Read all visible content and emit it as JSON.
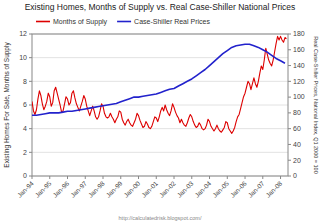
{
  "chart_data": {
    "type": "line",
    "title": "Existing Homes, Months of Supply vs. Real Case-Shiller National Prices",
    "y_label": "Existing Homes For Sale, Months of Supply",
    "y2_label": "Real Case-Shiller Prices, National Index, Q1 2000 = 100",
    "annotations": [
      "http://calculatedrisk.blogspot.com/"
    ],
    "xlim": [
      1994.0,
      2008.42
    ],
    "xticks": [
      {
        "value": 1994.0,
        "label": "Jan-94"
      },
      {
        "value": 1995.0,
        "label": "Jan-95"
      },
      {
        "value": 1996.0,
        "label": "Jan-96"
      },
      {
        "value": 1997.0,
        "label": "Jan-97"
      },
      {
        "value": 1998.0,
        "label": "Jan-98"
      },
      {
        "value": 1999.0,
        "label": "Jan-99"
      },
      {
        "value": 2000.0,
        "label": "Jan-00"
      },
      {
        "value": 2001.0,
        "label": "Jan-01"
      },
      {
        "value": 2002.0,
        "label": "Jan-02"
      },
      {
        "value": 2003.0,
        "label": "Jan-03"
      },
      {
        "value": 2004.0,
        "label": "Jan-04"
      },
      {
        "value": 2005.0,
        "label": "Jan-05"
      },
      {
        "value": 2006.0,
        "label": "Jan-06"
      },
      {
        "value": 2007.0,
        "label": "Jan-07"
      },
      {
        "value": 2008.0,
        "label": "Jan-08"
      }
    ],
    "ylim": [
      0,
      12
    ],
    "yticks": [
      0,
      2,
      4,
      6,
      8,
      10,
      12
    ],
    "y2lim": [
      0,
      180
    ],
    "y2ticks": [
      0,
      20,
      40,
      60,
      80,
      100,
      120,
      140,
      160,
      180
    ],
    "grid": true,
    "legend": "top-left",
    "series": [
      {
        "name": "Months of Supply",
        "color": "#dd0000",
        "x": [
          1994.0,
          1994.083,
          1994.167,
          1994.25,
          1994.333,
          1994.417,
          1994.5,
          1994.583,
          1994.667,
          1994.75,
          1994.833,
          1994.917,
          1995.0,
          1995.083,
          1995.167,
          1995.25,
          1995.333,
          1995.417,
          1995.5,
          1995.583,
          1995.667,
          1995.75,
          1995.833,
          1995.917,
          1996.0,
          1996.083,
          1996.167,
          1996.25,
          1996.333,
          1996.417,
          1996.5,
          1996.583,
          1996.667,
          1996.75,
          1996.833,
          1996.917,
          1997.0,
          1997.083,
          1997.167,
          1997.25,
          1997.333,
          1997.417,
          1997.5,
          1997.583,
          1997.667,
          1997.75,
          1997.833,
          1997.917,
          1998.0,
          1998.083,
          1998.167,
          1998.25,
          1998.333,
          1998.417,
          1998.5,
          1998.583,
          1998.667,
          1998.75,
          1998.833,
          1998.917,
          1999.0,
          1999.083,
          1999.167,
          1999.25,
          1999.333,
          1999.417,
          1999.5,
          1999.583,
          1999.667,
          1999.75,
          1999.833,
          1999.917,
          2000.0,
          2000.083,
          2000.167,
          2000.25,
          2000.333,
          2000.417,
          2000.5,
          2000.583,
          2000.667,
          2000.75,
          2000.833,
          2000.917,
          2001.0,
          2001.083,
          2001.167,
          2001.25,
          2001.333,
          2001.417,
          2001.5,
          2001.583,
          2001.667,
          2001.75,
          2001.833,
          2001.917,
          2002.0,
          2002.083,
          2002.167,
          2002.25,
          2002.333,
          2002.417,
          2002.5,
          2002.583,
          2002.667,
          2002.75,
          2002.833,
          2002.917,
          2003.0,
          2003.083,
          2003.167,
          2003.25,
          2003.333,
          2003.417,
          2003.5,
          2003.583,
          2003.667,
          2003.75,
          2003.833,
          2003.917,
          2004.0,
          2004.083,
          2004.167,
          2004.25,
          2004.333,
          2004.417,
          2004.5,
          2004.583,
          2004.667,
          2004.75,
          2004.833,
          2004.917,
          2005.0,
          2005.083,
          2005.167,
          2005.25,
          2005.333,
          2005.417,
          2005.5,
          2005.583,
          2005.667,
          2005.75,
          2005.833,
          2005.917,
          2006.0,
          2006.083,
          2006.167,
          2006.25,
          2006.333,
          2006.417,
          2006.5,
          2006.583,
          2006.667,
          2006.75,
          2006.833,
          2006.917,
          2007.0,
          2007.083,
          2007.167,
          2007.25,
          2007.333,
          2007.417,
          2007.5,
          2007.583,
          2007.667,
          2007.75,
          2007.833,
          2007.917,
          2008.0,
          2008.083,
          2008.167,
          2008.25,
          2008.333
        ],
        "values": [
          6.3,
          5.5,
          5.2,
          5.6,
          6.5,
          7.2,
          6.8,
          6.1,
          5.6,
          5.9,
          6.3,
          7.0,
          6.7,
          5.9,
          6.2,
          7.2,
          7.5,
          7.0,
          6.5,
          6.0,
          5.4,
          5.5,
          6.1,
          6.7,
          6.5,
          6.0,
          6.2,
          7.0,
          7.2,
          6.6,
          6.1,
          5.8,
          5.5,
          5.9,
          6.3,
          6.8,
          6.5,
          5.9,
          5.5,
          5.1,
          5.5,
          5.9,
          5.5,
          5.0,
          4.8,
          5.0,
          5.5,
          6.1,
          5.9,
          5.3,
          5.0,
          4.9,
          5.0,
          5.3,
          5.0,
          4.8,
          4.5,
          4.8,
          5.0,
          5.5,
          5.4,
          4.8,
          4.5,
          4.3,
          4.6,
          4.8,
          4.5,
          4.3,
          4.2,
          4.5,
          4.8,
          5.3,
          5.1,
          4.7,
          4.4,
          4.1,
          4.2,
          4.6,
          4.4,
          4.1,
          4.0,
          4.2,
          4.6,
          5.0,
          4.9,
          4.6,
          5.0,
          5.5,
          5.8,
          5.5,
          6.0,
          5.6,
          5.3,
          5.1,
          5.5,
          6.1,
          5.8,
          5.4,
          5.1,
          4.9,
          4.5,
          4.8,
          4.5,
          4.3,
          4.2,
          4.5,
          4.9,
          5.2,
          5.0,
          4.6,
          4.3,
          4.1,
          4.2,
          4.5,
          4.3,
          4.0,
          3.9,
          4.0,
          4.3,
          4.8,
          4.6,
          4.2,
          4.0,
          3.8,
          4.0,
          4.3,
          4.0,
          3.8,
          3.7,
          3.9,
          4.1,
          4.6,
          4.5,
          4.0,
          3.8,
          3.6,
          3.8,
          4.1,
          4.6,
          5.0,
          5.2,
          5.7,
          6.2,
          6.7,
          7.0,
          7.5,
          8.0,
          7.8,
          7.3,
          7.8,
          8.3,
          7.8,
          7.5,
          8.0,
          8.7,
          9.3,
          9.0,
          9.8,
          10.8,
          10.3,
          9.8,
          9.5,
          9.3,
          9.8,
          10.5,
          11.2,
          11.8,
          11.5,
          11.8,
          11.5,
          11.3,
          11.7,
          11.6
        ]
      },
      {
        "name": "Case-Shiller Real Prices",
        "color": "#2222cc",
        "axis": "y2",
        "x": [
          1994.0,
          1994.25,
          1994.5,
          1994.75,
          1995.0,
          1995.25,
          1995.5,
          1995.75,
          1996.0,
          1996.25,
          1996.5,
          1996.75,
          1997.0,
          1997.25,
          1997.5,
          1997.75,
          1998.0,
          1998.25,
          1998.5,
          1998.75,
          1999.0,
          1999.25,
          1999.5,
          1999.75,
          2000.0,
          2000.25,
          2000.5,
          2000.75,
          2001.0,
          2001.25,
          2001.5,
          2001.75,
          2002.0,
          2002.25,
          2002.5,
          2002.75,
          2003.0,
          2003.25,
          2003.5,
          2003.75,
          2004.0,
          2004.25,
          2004.5,
          2004.75,
          2005.0,
          2005.25,
          2005.5,
          2005.75,
          2006.0,
          2006.25,
          2006.5,
          2006.75,
          2007.0,
          2007.25,
          2007.5,
          2007.75,
          2008.0,
          2008.25
        ],
        "values": [
          77,
          77,
          78,
          79,
          80,
          80,
          80,
          81,
          82,
          82,
          83,
          84,
          85,
          86,
          87,
          88,
          89,
          90,
          91,
          92,
          94,
          96,
          98,
          100,
          100,
          101,
          102,
          103,
          104,
          106,
          108,
          110,
          111,
          114,
          117,
          120,
          123,
          127,
          131,
          135,
          140,
          145,
          150,
          155,
          159,
          163,
          165,
          166,
          167,
          167,
          165,
          163,
          160,
          157,
          153,
          149,
          146,
          143
        ]
      }
    ]
  }
}
